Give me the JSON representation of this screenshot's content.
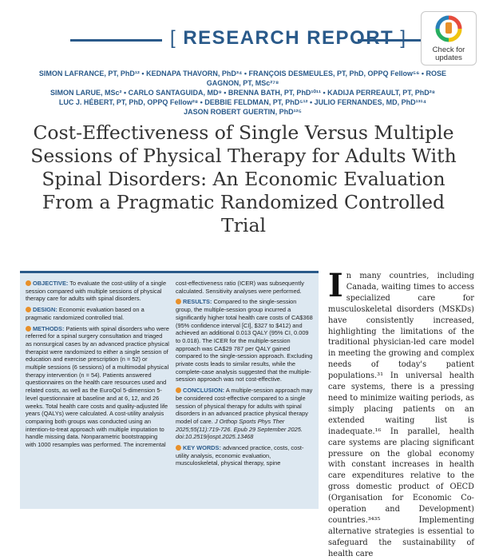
{
  "header": {
    "open_bracket": "[",
    "section_title": "RESEARCH REPORT",
    "close_bracket": "]"
  },
  "badge": {
    "line1": "Check for",
    "line2": "updates"
  },
  "authors": [
    "SIMON LAFRANCE, PT, PhD¹² • KEDNAPA THAVORN, PhD³⁴ • FRANÇOIS DESMEULES, PT, PhD, OPPQ Fellow⁵⁶ • ROSE GAGNON, PT, MSc²⁷⁸",
    "SIMON LARUE, MSc² • CARLO SANTAGUIDA, MD⁹ • BRENNA BATH, PT, PhD¹⁰¹¹ • KADIJA PERREAULT, PT, PhD²⁸",
    "LUC J. HÉBERT, PT, PhD, OPPQ Fellow²⁸ • DEBBIE FELDMAN, PT, PhD⁵¹² • JULIO FERNANDES, MD, PhD¹³¹⁴",
    "JASON ROBERT GUERTIN, PhD¹²⁵"
  ],
  "article_title": "Cost-Effectiveness of Single Versus Multiple Sessions of Physical Therapy for Adults With Spinal Disorders: An Economic Evaluation From a Pragmatic Randomized Controlled Trial",
  "abstract": {
    "objective_h": "OBJECTIVE:",
    "objective": "To evaluate the cost-utility of a single session compared with multiple sessions of physical therapy care for adults with spinal disorders.",
    "design_h": "DESIGN:",
    "design": "Economic evaluation based on a pragmatic randomized controlled trial.",
    "methods_h": "METHODS:",
    "methods": "Patients with spinal disorders who were referred for a spinal surgery consultation and triaged as nonsurgical cases by an advanced practice physical therapist were randomized to either a single session of education and exercise prescription (n = 52) or multiple sessions (6 sessions) of a multimodal physical therapy intervention (n = 54). Patients answered questionnaires on the health care resources used and related costs, as well as the EuroQol 5-dimension 5-level questionnaire at baseline and at 6, 12, and 26 weeks. Total health care costs and quality-adjusted life years (QALYs) were calculated. A cost-utility analysis comparing both groups was conducted using an intention-to-treat approach with multiple imputation to handle missing data. Nonparametric bootstrapping with 1000 resamples was performed. The incremental",
    "methods_cont": "cost-effectiveness ratio (ICER) was subsequently calculated. Sensitivity analyses were performed.",
    "results_h": "RESULTS:",
    "results": "Compared to the single-session group, the multiple-session group incurred a significantly higher total health care costs of CA$368 (95% confidence interval [CI], $327 to $412) and achieved an additional 0.013 QALY (95% CI, 0.009 to 0.018). The ICER for the multiple-session approach was CA$29 787 per QALY gained compared to the single-session approach. Excluding private costs leads to similar results, while the complete-case analysis suggested that the multiple-session approach was not cost-effective.",
    "conclusion_h": "CONCLUSION:",
    "conclusion": "A multiple-session approach may be considered cost-effective compared to a single session of physical therapy for adults with spinal disorders in an advanced practice physical therapy model of care.",
    "citation": "J Orthop Sports Phys Ther 2025;55(11):719-726. Epub 29 September 2025. doi:10.2519/jospt.2025.13468",
    "keywords_h": "KEY WORDS:",
    "keywords": "advanced practice, costs, cost-utility analysis, economic evaluation, musculoskeletal, physical therapy, spine"
  },
  "body": {
    "dropcap": "I",
    "text": "n many countries, including Canada, waiting times to access specialized care for musculoskeletal disorders (MSKDs) have consistently increased, highlighting the limitations of the traditional physician-led care model in meeting the growing and complex needs of today's patient populations.³¹ In universal health care systems, there is a pressing need to minimize waiting periods, as simply placing patients on an extended waiting list is inadequate.¹⁶ In parallel, health care systems are placing significant pressure on the global economy with constant increases in health care expenditures relative to the gross domestic product of OECD (Organisation for Economic Co-operation and Development) countries.³⁴³⁵ Implementing alternative strategies is essential to safeguard the sustainability of health care"
  },
  "colors": {
    "brand_blue": "#2a5a8a",
    "abstract_bg": "#dde8f1",
    "bullet_orange": "#e8902a"
  }
}
